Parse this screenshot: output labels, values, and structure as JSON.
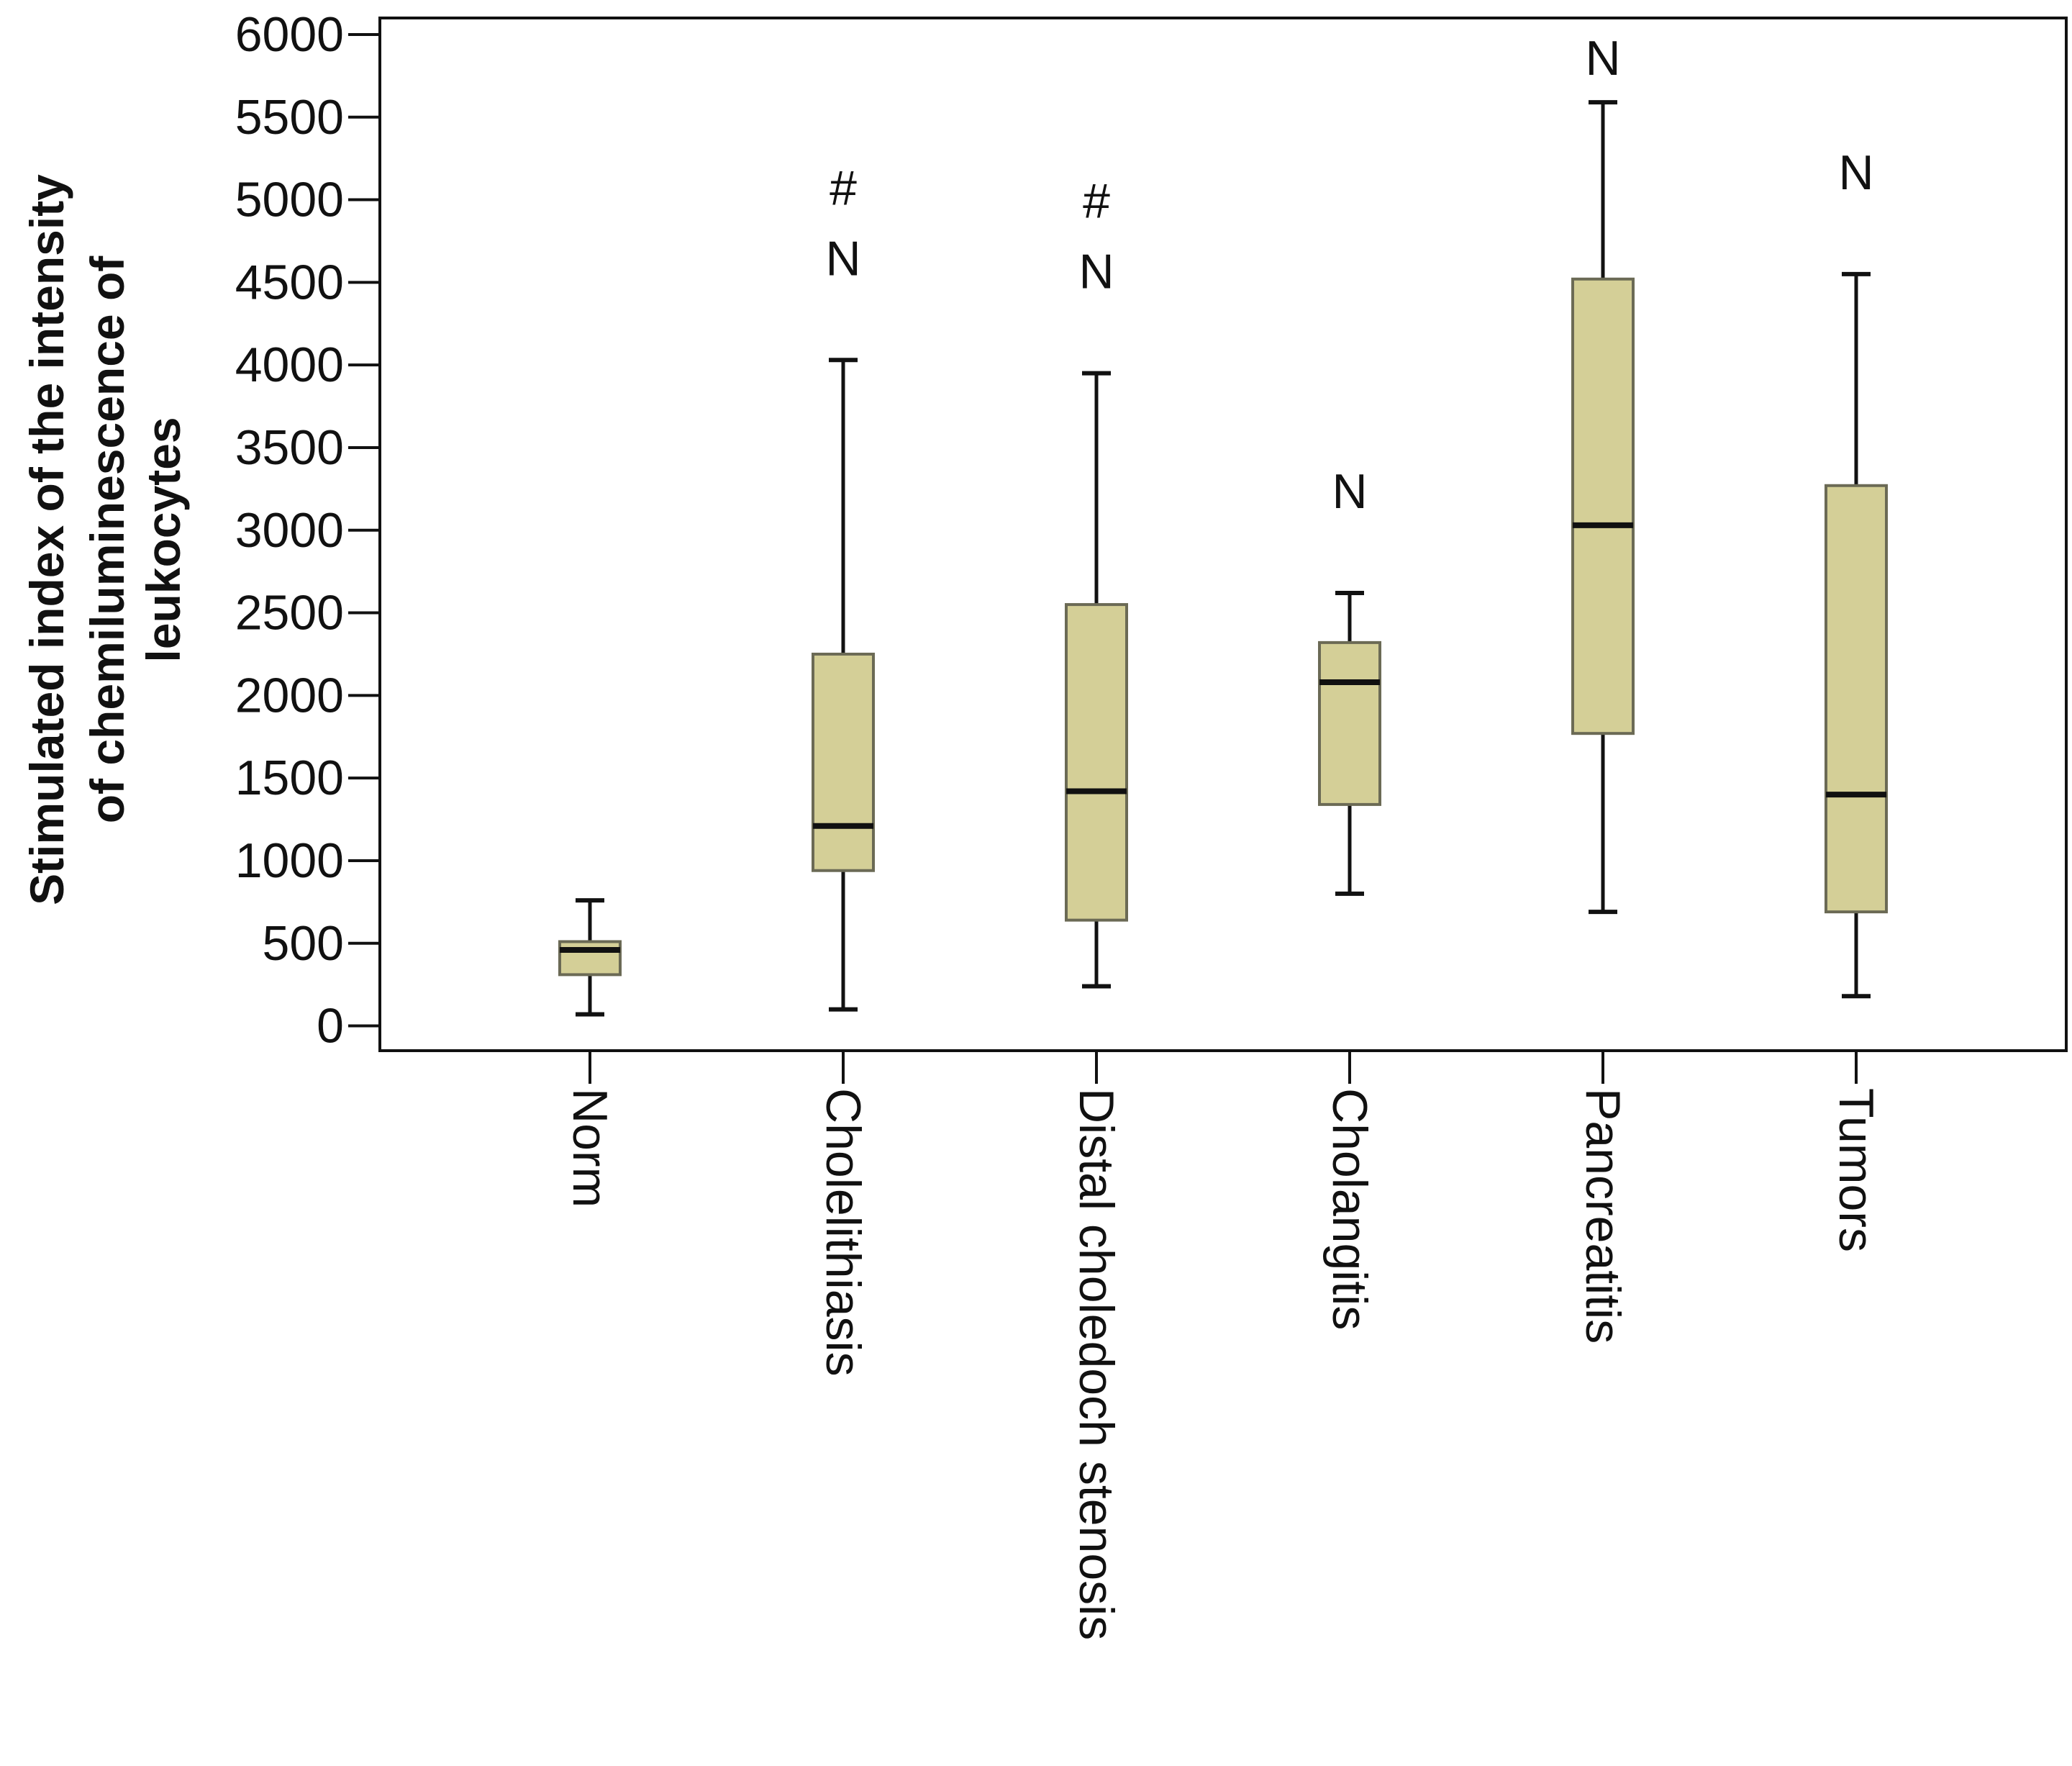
{
  "chart_data": {
    "type": "boxplot",
    "title": "",
    "xlabel": "",
    "ylabel_lines": [
      "Stimulated index of the intensity",
      "of chemiluminescence of",
      "leukocytes"
    ],
    "ylim": [
      -150,
      6100
    ],
    "yticks": [
      0,
      500,
      1000,
      1500,
      2000,
      2500,
      3000,
      3500,
      4000,
      4500,
      5000,
      5500,
      6000
    ],
    "grid": false,
    "box_color": "#d4cf97",
    "categories": [
      "Norm",
      "Cholelithiasis",
      "Distal choledoch stenosis",
      "Cholangitis",
      "Pancreatitis",
      "Tumors"
    ],
    "boxes": [
      {
        "category": "Norm",
        "whisker_low": 70,
        "q1": 310,
        "median": 460,
        "q3": 510,
        "whisker_high": 760,
        "annotations": []
      },
      {
        "category": "Cholelithiasis",
        "whisker_low": 100,
        "q1": 940,
        "median": 1210,
        "q3": 2250,
        "whisker_high": 4030,
        "annotations": [
          "#",
          "N"
        ]
      },
      {
        "category": "Distal choledoch stenosis",
        "whisker_low": 240,
        "q1": 640,
        "median": 1420,
        "q3": 2550,
        "whisker_high": 3950,
        "annotations": [
          "#",
          "N"
        ]
      },
      {
        "category": "Cholangitis",
        "whisker_low": 800,
        "q1": 1340,
        "median": 2080,
        "q3": 2320,
        "whisker_high": 2620,
        "annotations": [
          "N"
        ]
      },
      {
        "category": "Pancreatitis",
        "whisker_low": 690,
        "q1": 1770,
        "median": 3030,
        "q3": 4520,
        "whisker_high": 5590,
        "annotations": [
          "N"
        ]
      },
      {
        "category": "Tumors",
        "whisker_low": 180,
        "q1": 690,
        "median": 1400,
        "q3": 3270,
        "whisker_high": 4550,
        "annotations": [
          "N"
        ]
      }
    ]
  }
}
